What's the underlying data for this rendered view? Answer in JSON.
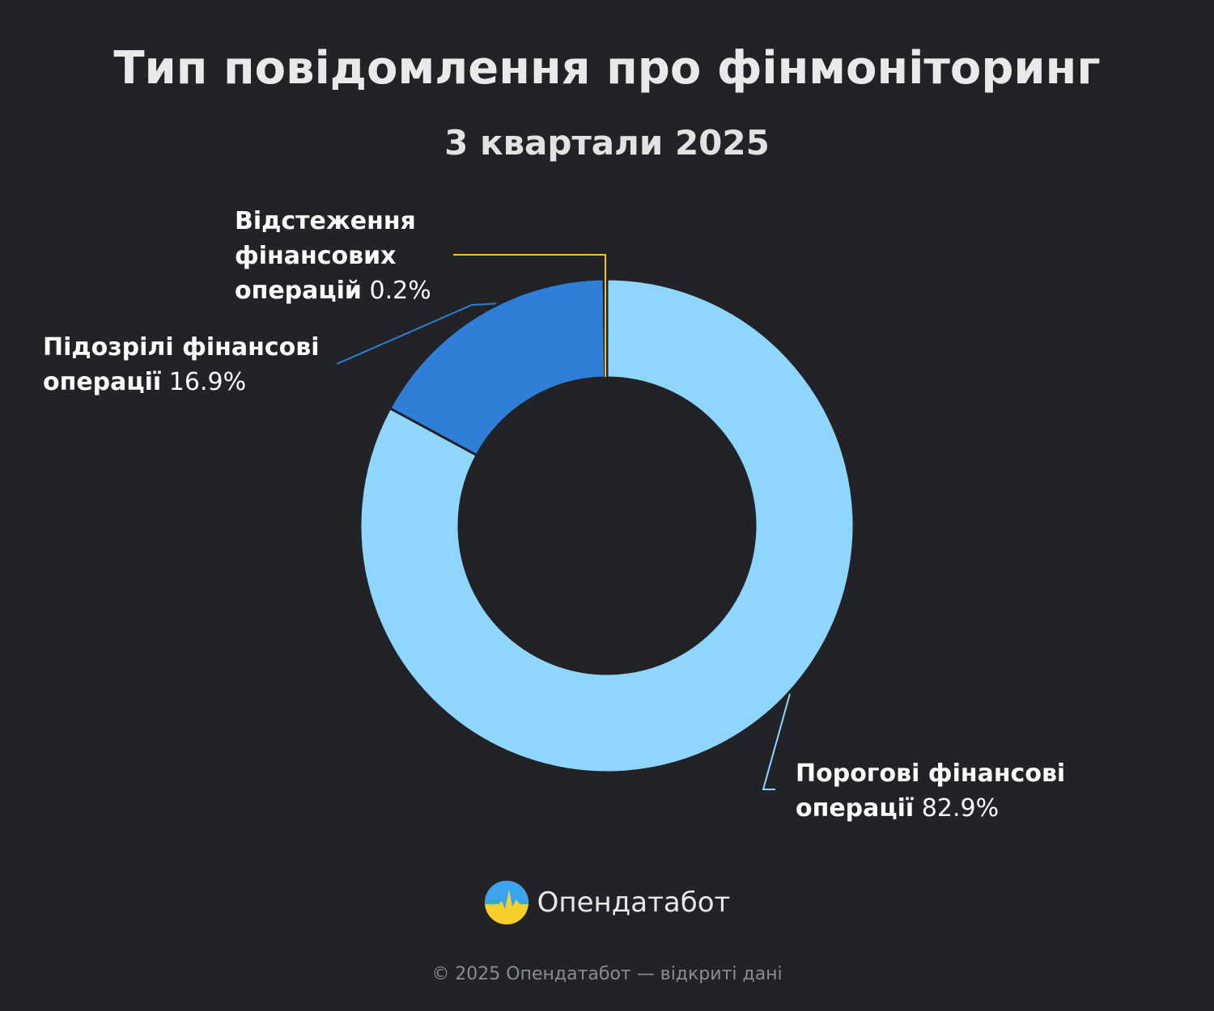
{
  "title": "Тип повідомлення про фінмоніторинг",
  "subtitle": "3 квартали 2025",
  "chart_data": {
    "type": "pie",
    "donut": true,
    "title": "Тип повідомлення про фінмоніторинг",
    "subtitle": "3 квартали 2025",
    "slices": [
      {
        "name": "Порогові фінансові операції",
        "value": 82.9,
        "label": "82.9%",
        "color": "#8fd6ff"
      },
      {
        "name": "Підозрілі фінансові операції",
        "value": 16.9,
        "label": "16.9%",
        "color": "#2f7fd8"
      },
      {
        "name": "Відстеження фінансових операцій",
        "value": 0.2,
        "label": "0.2%",
        "color": "#f2c417"
      }
    ]
  },
  "labels": [
    {
      "line1": "Порогові фінансові",
      "line2": "операції",
      "pct": "82.9%"
    },
    {
      "line1": "Підозрілі фінансові",
      "line2": "операції",
      "pct": "16.9%"
    },
    {
      "line1": "Відстеження",
      "line1b": "фінансових",
      "line2": "операцій",
      "pct": "0.2%"
    }
  ],
  "brand": {
    "name": "Опендатабот",
    "logo_icon": "opendatabot-logo-icon"
  },
  "footer": "© 2025 Опендатабот — відкриті дані"
}
